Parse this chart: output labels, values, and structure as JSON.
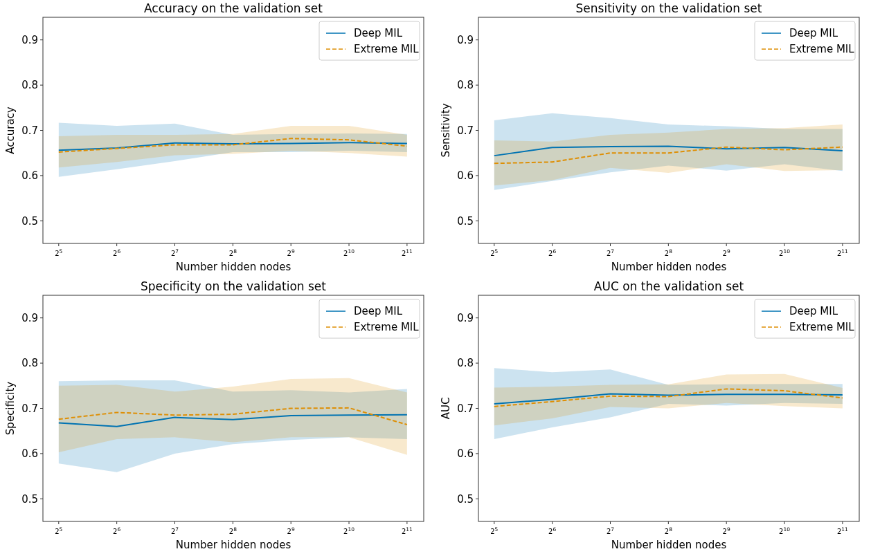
{
  "chart_data": [
    {
      "type": "line",
      "title": "Accuracy on the validation set",
      "xlabel": "Number hidden nodes",
      "ylabel": "Accuracy",
      "log": "x",
      "x": [
        32,
        64,
        128,
        256,
        512,
        1024,
        2048
      ],
      "xlim": [
        26.5,
        2500
      ],
      "xticks": [
        {
          "value": 32,
          "label": "2$^{5}$"
        },
        {
          "value": 64,
          "label": "2$^{6}$"
        },
        {
          "value": 128,
          "label": "2$^{7}$"
        },
        {
          "value": 256,
          "label": "2$^{8}$"
        },
        {
          "value": 512,
          "label": "2$^{9}$"
        },
        {
          "value": 1024,
          "label": "2$^{10}$"
        },
        {
          "value": 2048,
          "label": "2$^{11}$"
        }
      ],
      "ylim": [
        0.45,
        0.95
      ],
      "yticks": [
        0.5,
        0.6,
        0.7,
        0.8,
        0.9
      ],
      "grid": false,
      "legend": "top right",
      "marker": "none",
      "series": [
        {
          "name": "Deep MIL",
          "color": "#0173b2",
          "line_style": "solid",
          "values": [
            0.656,
            0.661,
            0.672,
            0.67,
            0.671,
            0.673,
            0.671
          ],
          "lower": [
            0.597,
            0.614,
            0.632,
            0.652,
            0.652,
            0.655,
            0.652
          ],
          "upper": [
            0.717,
            0.71,
            0.715,
            0.69,
            0.692,
            0.693,
            0.692
          ]
        },
        {
          "name": "Extreme MIL",
          "color": "#de8f05",
          "line_style": "dashed",
          "values": [
            0.652,
            0.66,
            0.668,
            0.668,
            0.682,
            0.679,
            0.665
          ],
          "lower": [
            0.618,
            0.63,
            0.645,
            0.648,
            0.655,
            0.65,
            0.642
          ],
          "upper": [
            0.687,
            0.69,
            0.69,
            0.692,
            0.71,
            0.71,
            0.69
          ]
        }
      ]
    },
    {
      "type": "line",
      "title": "Sensitivity on the validation set",
      "xlabel": "Number hidden nodes",
      "ylabel": "Sensitivity",
      "log": "x",
      "x": [
        32,
        64,
        128,
        256,
        512,
        1024,
        2048
      ],
      "xlim": [
        26.5,
        2500
      ],
      "xticks": [
        {
          "value": 32,
          "label": "2$^{5}$"
        },
        {
          "value": 64,
          "label": "2$^{6}$"
        },
        {
          "value": 128,
          "label": "2$^{7}$"
        },
        {
          "value": 256,
          "label": "2$^{8}$"
        },
        {
          "value": 512,
          "label": "2$^{9}$"
        },
        {
          "value": 1024,
          "label": "2$^{10}$"
        },
        {
          "value": 2048,
          "label": "2$^{11}$"
        }
      ],
      "ylim": [
        0.45,
        0.95
      ],
      "yticks": [
        0.5,
        0.6,
        0.7,
        0.8,
        0.9
      ],
      "grid": false,
      "legend": "top right",
      "marker": "none",
      "series": [
        {
          "name": "Deep MIL",
          "color": "#0173b2",
          "line_style": "solid",
          "values": [
            0.644,
            0.662,
            0.664,
            0.665,
            0.659,
            0.662,
            0.655
          ],
          "lower": [
            0.568,
            0.588,
            0.607,
            0.622,
            0.611,
            0.625,
            0.61
          ],
          "upper": [
            0.722,
            0.738,
            0.727,
            0.713,
            0.709,
            0.703,
            0.703
          ]
        },
        {
          "name": "Extreme MIL",
          "color": "#de8f05",
          "line_style": "dashed",
          "values": [
            0.627,
            0.63,
            0.65,
            0.65,
            0.663,
            0.657,
            0.663
          ],
          "lower": [
            0.578,
            0.59,
            0.617,
            0.606,
            0.625,
            0.61,
            0.612
          ],
          "upper": [
            0.678,
            0.675,
            0.69,
            0.695,
            0.703,
            0.705,
            0.713
          ]
        }
      ]
    },
    {
      "type": "line",
      "title": "Specificity on the validation set",
      "xlabel": "Number hidden nodes",
      "ylabel": "Specificity",
      "log": "x",
      "x": [
        32,
        64,
        128,
        256,
        512,
        1024,
        2048
      ],
      "xlim": [
        26.5,
        2500
      ],
      "xticks": [
        {
          "value": 32,
          "label": "2$^{5}$"
        },
        {
          "value": 64,
          "label": "2$^{6}$"
        },
        {
          "value": 128,
          "label": "2$^{7}$"
        },
        {
          "value": 256,
          "label": "2$^{8}$"
        },
        {
          "value": 512,
          "label": "2$^{9}$"
        },
        {
          "value": 1024,
          "label": "2$^{10}$"
        },
        {
          "value": 2048,
          "label": "2$^{11}$"
        }
      ],
      "ylim": [
        0.45,
        0.95
      ],
      "yticks": [
        0.5,
        0.6,
        0.7,
        0.8,
        0.9
      ],
      "grid": false,
      "legend": "top right",
      "marker": "none",
      "series": [
        {
          "name": "Deep MIL",
          "color": "#0173b2",
          "line_style": "solid",
          "values": [
            0.668,
            0.66,
            0.68,
            0.675,
            0.684,
            0.685,
            0.686
          ],
          "lower": [
            0.578,
            0.559,
            0.6,
            0.621,
            0.63,
            0.636,
            0.632
          ],
          "upper": [
            0.76,
            0.762,
            0.762,
            0.737,
            0.74,
            0.735,
            0.743
          ]
        },
        {
          "name": "Extreme MIL",
          "color": "#de8f05",
          "line_style": "dashed",
          "values": [
            0.676,
            0.691,
            0.685,
            0.687,
            0.7,
            0.701,
            0.664
          ],
          "lower": [
            0.603,
            0.632,
            0.636,
            0.625,
            0.636,
            0.636,
            0.597
          ],
          "upper": [
            0.75,
            0.752,
            0.737,
            0.748,
            0.765,
            0.767,
            0.735
          ]
        }
      ]
    },
    {
      "type": "line",
      "title": "AUC on the validation set",
      "xlabel": "Number hidden nodes",
      "ylabel": "AUC",
      "log": "x",
      "x": [
        32,
        64,
        128,
        256,
        512,
        1024,
        2048
      ],
      "xlim": [
        26.5,
        2500
      ],
      "xticks": [
        {
          "value": 32,
          "label": "2$^{5}$"
        },
        {
          "value": 64,
          "label": "2$^{6}$"
        },
        {
          "value": 128,
          "label": "2$^{7}$"
        },
        {
          "value": 256,
          "label": "2$^{8}$"
        },
        {
          "value": 512,
          "label": "2$^{9}$"
        },
        {
          "value": 1024,
          "label": "2$^{10}$"
        },
        {
          "value": 2048,
          "label": "2$^{11}$"
        }
      ],
      "ylim": [
        0.45,
        0.95
      ],
      "yticks": [
        0.5,
        0.6,
        0.7,
        0.8,
        0.9
      ],
      "grid": false,
      "legend": "top right",
      "marker": "none",
      "series": [
        {
          "name": "Deep MIL",
          "color": "#0173b2",
          "line_style": "solid",
          "values": [
            0.71,
            0.72,
            0.732,
            0.729,
            0.731,
            0.731,
            0.73
          ],
          "lower": [
            0.632,
            0.658,
            0.68,
            0.71,
            0.706,
            0.712,
            0.71
          ],
          "upper": [
            0.789,
            0.78,
            0.786,
            0.752,
            0.753,
            0.754,
            0.754
          ]
        },
        {
          "name": "Extreme MIL",
          "color": "#de8f05",
          "line_style": "dashed",
          "values": [
            0.704,
            0.715,
            0.727,
            0.726,
            0.743,
            0.739,
            0.723
          ],
          "lower": [
            0.662,
            0.678,
            0.703,
            0.7,
            0.712,
            0.705,
            0.7
          ],
          "upper": [
            0.746,
            0.748,
            0.752,
            0.753,
            0.775,
            0.776,
            0.745
          ]
        }
      ]
    }
  ]
}
